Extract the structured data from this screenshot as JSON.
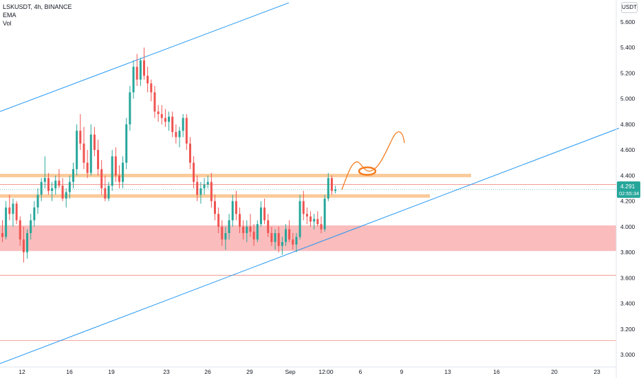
{
  "header": {
    "symbol_line": "LSKUSDT, 4h, BINANCE",
    "indicator_1": "EMA",
    "indicator_2": "Vol",
    "currency": "USDT"
  },
  "price_badge": {
    "price": "4.291",
    "countdown": "02:55:34",
    "hidden_label": "4.200"
  },
  "colors": {
    "up": "#26a69a",
    "down": "#ef5350",
    "channel": "#2196f3",
    "resistance": "#f9c48f",
    "support_zone": "#f8a5a5",
    "annotation": "#f57c1f",
    "badge": "#26a69a"
  },
  "chart_data": {
    "type": "candlestick",
    "title": "",
    "ylim": [
      2.95,
      5.75
    ],
    "y_ticks": [
      "5.600",
      "5.400",
      "5.200",
      "5.000",
      "4.800",
      "4.600",
      "4.400",
      "4.200",
      "4.000",
      "3.800",
      "3.600",
      "3.400",
      "3.200",
      "3.000"
    ],
    "x_ticks": [
      "12",
      "16",
      "19",
      "23",
      "26",
      "29",
      "Sep",
      "12:00",
      "6",
      "9",
      "13",
      "16",
      "20",
      "23"
    ],
    "annotations": {
      "channel_upper": [
        [
          0,
          4.9
        ],
        [
          420,
          5.75
        ]
      ],
      "channel_lower": [
        [
          0,
          2.93
        ],
        [
          900,
          4.77
        ]
      ],
      "resistance_1": 4.4,
      "resistance_2": 4.24,
      "support_zone": [
        3.81,
        4.01
      ],
      "thin_levels": [
        4.33,
        3.62,
        3.11
      ],
      "projection": "orange curved arrow projecting price up to ~4.40, small pullback, then up toward 4.65"
    },
    "candles": [
      [
        3.95,
        4.05,
        3.88,
        3.92
      ],
      [
        3.92,
        4.2,
        3.9,
        4.15
      ],
      [
        4.15,
        4.25,
        4.05,
        4.1
      ],
      [
        4.1,
        4.22,
        4.0,
        4.18
      ],
      [
        4.18,
        4.2,
        4.02,
        4.05
      ],
      [
        4.05,
        4.08,
        3.85,
        3.9
      ],
      [
        3.9,
        4.0,
        3.72,
        3.8
      ],
      [
        3.8,
        3.98,
        3.75,
        3.95
      ],
      [
        3.95,
        4.1,
        3.9,
        4.05
      ],
      [
        4.05,
        4.2,
        4.0,
        4.15
      ],
      [
        4.15,
        4.3,
        4.1,
        4.25
      ],
      [
        4.25,
        4.38,
        4.2,
        4.35
      ],
      [
        4.35,
        4.55,
        4.3,
        4.38
      ],
      [
        4.38,
        4.42,
        4.25,
        4.28
      ],
      [
        4.28,
        4.35,
        4.2,
        4.3
      ],
      [
        4.3,
        4.4,
        4.25,
        4.36
      ],
      [
        4.36,
        4.45,
        4.3,
        4.32
      ],
      [
        4.32,
        4.38,
        4.2,
        4.22
      ],
      [
        4.22,
        4.3,
        4.15,
        4.27
      ],
      [
        4.27,
        4.4,
        4.22,
        4.35
      ],
      [
        4.35,
        4.5,
        4.3,
        4.45
      ],
      [
        4.45,
        4.8,
        4.4,
        4.75
      ],
      [
        4.75,
        4.88,
        4.6,
        4.65
      ],
      [
        4.65,
        4.78,
        4.45,
        4.5
      ],
      [
        4.5,
        4.6,
        4.38,
        4.42
      ],
      [
        4.42,
        4.8,
        4.4,
        4.72
      ],
      [
        4.72,
        4.78,
        4.55,
        4.6
      ],
      [
        4.6,
        4.68,
        4.4,
        4.45
      ],
      [
        4.45,
        4.52,
        4.25,
        4.3
      ],
      [
        4.3,
        4.4,
        4.2,
        4.22
      ],
      [
        4.22,
        4.35,
        4.2,
        4.32
      ],
      [
        4.32,
        4.6,
        4.28,
        4.55
      ],
      [
        4.55,
        4.62,
        4.35,
        4.4
      ],
      [
        4.4,
        4.48,
        4.3,
        4.35
      ],
      [
        4.35,
        4.55,
        4.3,
        4.5
      ],
      [
        4.5,
        4.85,
        4.45,
        4.8
      ],
      [
        4.8,
        5.1,
        4.75,
        5.05
      ],
      [
        5.05,
        5.3,
        5.0,
        5.25
      ],
      [
        5.25,
        5.35,
        5.1,
        5.15
      ],
      [
        5.15,
        5.32,
        5.1,
        5.3
      ],
      [
        5.3,
        5.4,
        5.15,
        5.18
      ],
      [
        5.18,
        5.25,
        5.05,
        5.12
      ],
      [
        5.12,
        5.15,
        4.98,
        5.05
      ],
      [
        5.05,
        5.1,
        4.85,
        4.9
      ],
      [
        4.9,
        4.95,
        4.82,
        4.88
      ],
      [
        4.88,
        4.95,
        4.8,
        4.85
      ],
      [
        4.85,
        4.92,
        4.78,
        4.82
      ],
      [
        4.82,
        4.9,
        4.75,
        4.86
      ],
      [
        4.86,
        4.9,
        4.7,
        4.74
      ],
      [
        4.74,
        4.8,
        4.65,
        4.7
      ],
      [
        4.7,
        4.78,
        4.62,
        4.75
      ],
      [
        4.75,
        4.88,
        4.7,
        4.85
      ],
      [
        4.85,
        4.88,
        4.6,
        4.65
      ],
      [
        4.65,
        4.7,
        4.45,
        4.5
      ],
      [
        4.5,
        4.55,
        4.3,
        4.35
      ],
      [
        4.35,
        4.4,
        4.2,
        4.25
      ],
      [
        4.25,
        4.35,
        4.18,
        4.3
      ],
      [
        4.3,
        4.38,
        4.25,
        4.33
      ],
      [
        4.33,
        4.4,
        4.3,
        4.35
      ],
      [
        4.35,
        4.42,
        4.15,
        4.2
      ],
      [
        4.2,
        4.25,
        4.05,
        4.1
      ],
      [
        4.1,
        4.15,
        3.95,
        4.0
      ],
      [
        4.0,
        4.05,
        3.85,
        3.9
      ],
      [
        3.9,
        4.0,
        3.82,
        3.95
      ],
      [
        3.95,
        4.1,
        3.9,
        4.05
      ],
      [
        4.05,
        4.25,
        4.0,
        4.2
      ],
      [
        4.2,
        4.28,
        4.05,
        4.1
      ],
      [
        4.1,
        4.15,
        3.95,
        4.0
      ],
      [
        4.0,
        4.05,
        3.9,
        3.95
      ],
      [
        3.95,
        4.05,
        3.88,
        4.0
      ],
      [
        4.0,
        4.1,
        3.92,
        3.96
      ],
      [
        3.96,
        4.02,
        3.85,
        3.9
      ],
      [
        3.9,
        4.05,
        3.88,
        4.02
      ],
      [
        4.02,
        4.2,
        4.0,
        4.15
      ],
      [
        4.15,
        4.22,
        4.02,
        4.05
      ],
      [
        4.05,
        4.1,
        3.92,
        3.95
      ],
      [
        3.95,
        4.0,
        3.85,
        3.88
      ],
      [
        3.88,
        3.98,
        3.82,
        3.95
      ],
      [
        3.95,
        4.0,
        3.8,
        3.85
      ],
      [
        3.85,
        3.92,
        3.78,
        3.88
      ],
      [
        3.88,
        4.02,
        3.85,
        3.98
      ],
      [
        3.98,
        4.05,
        3.88,
        3.9
      ],
      [
        3.9,
        3.95,
        3.82,
        3.86
      ],
      [
        3.86,
        3.95,
        3.8,
        3.92
      ],
      [
        3.92,
        4.25,
        3.9,
        4.2
      ],
      [
        4.2,
        4.28,
        4.05,
        4.1
      ],
      [
        4.1,
        4.15,
        4.02,
        4.08
      ],
      [
        4.08,
        4.12,
        4.0,
        4.04
      ],
      [
        4.04,
        4.1,
        3.98,
        4.06
      ],
      [
        4.06,
        4.12,
        4.0,
        4.02
      ],
      [
        4.02,
        4.08,
        3.95,
        3.98
      ],
      [
        3.98,
        4.25,
        3.96,
        4.22
      ],
      [
        4.22,
        4.42,
        4.2,
        4.38
      ],
      [
        4.38,
        4.4,
        4.25,
        4.28
      ],
      [
        4.28,
        4.32,
        4.26,
        4.29
      ]
    ]
  }
}
